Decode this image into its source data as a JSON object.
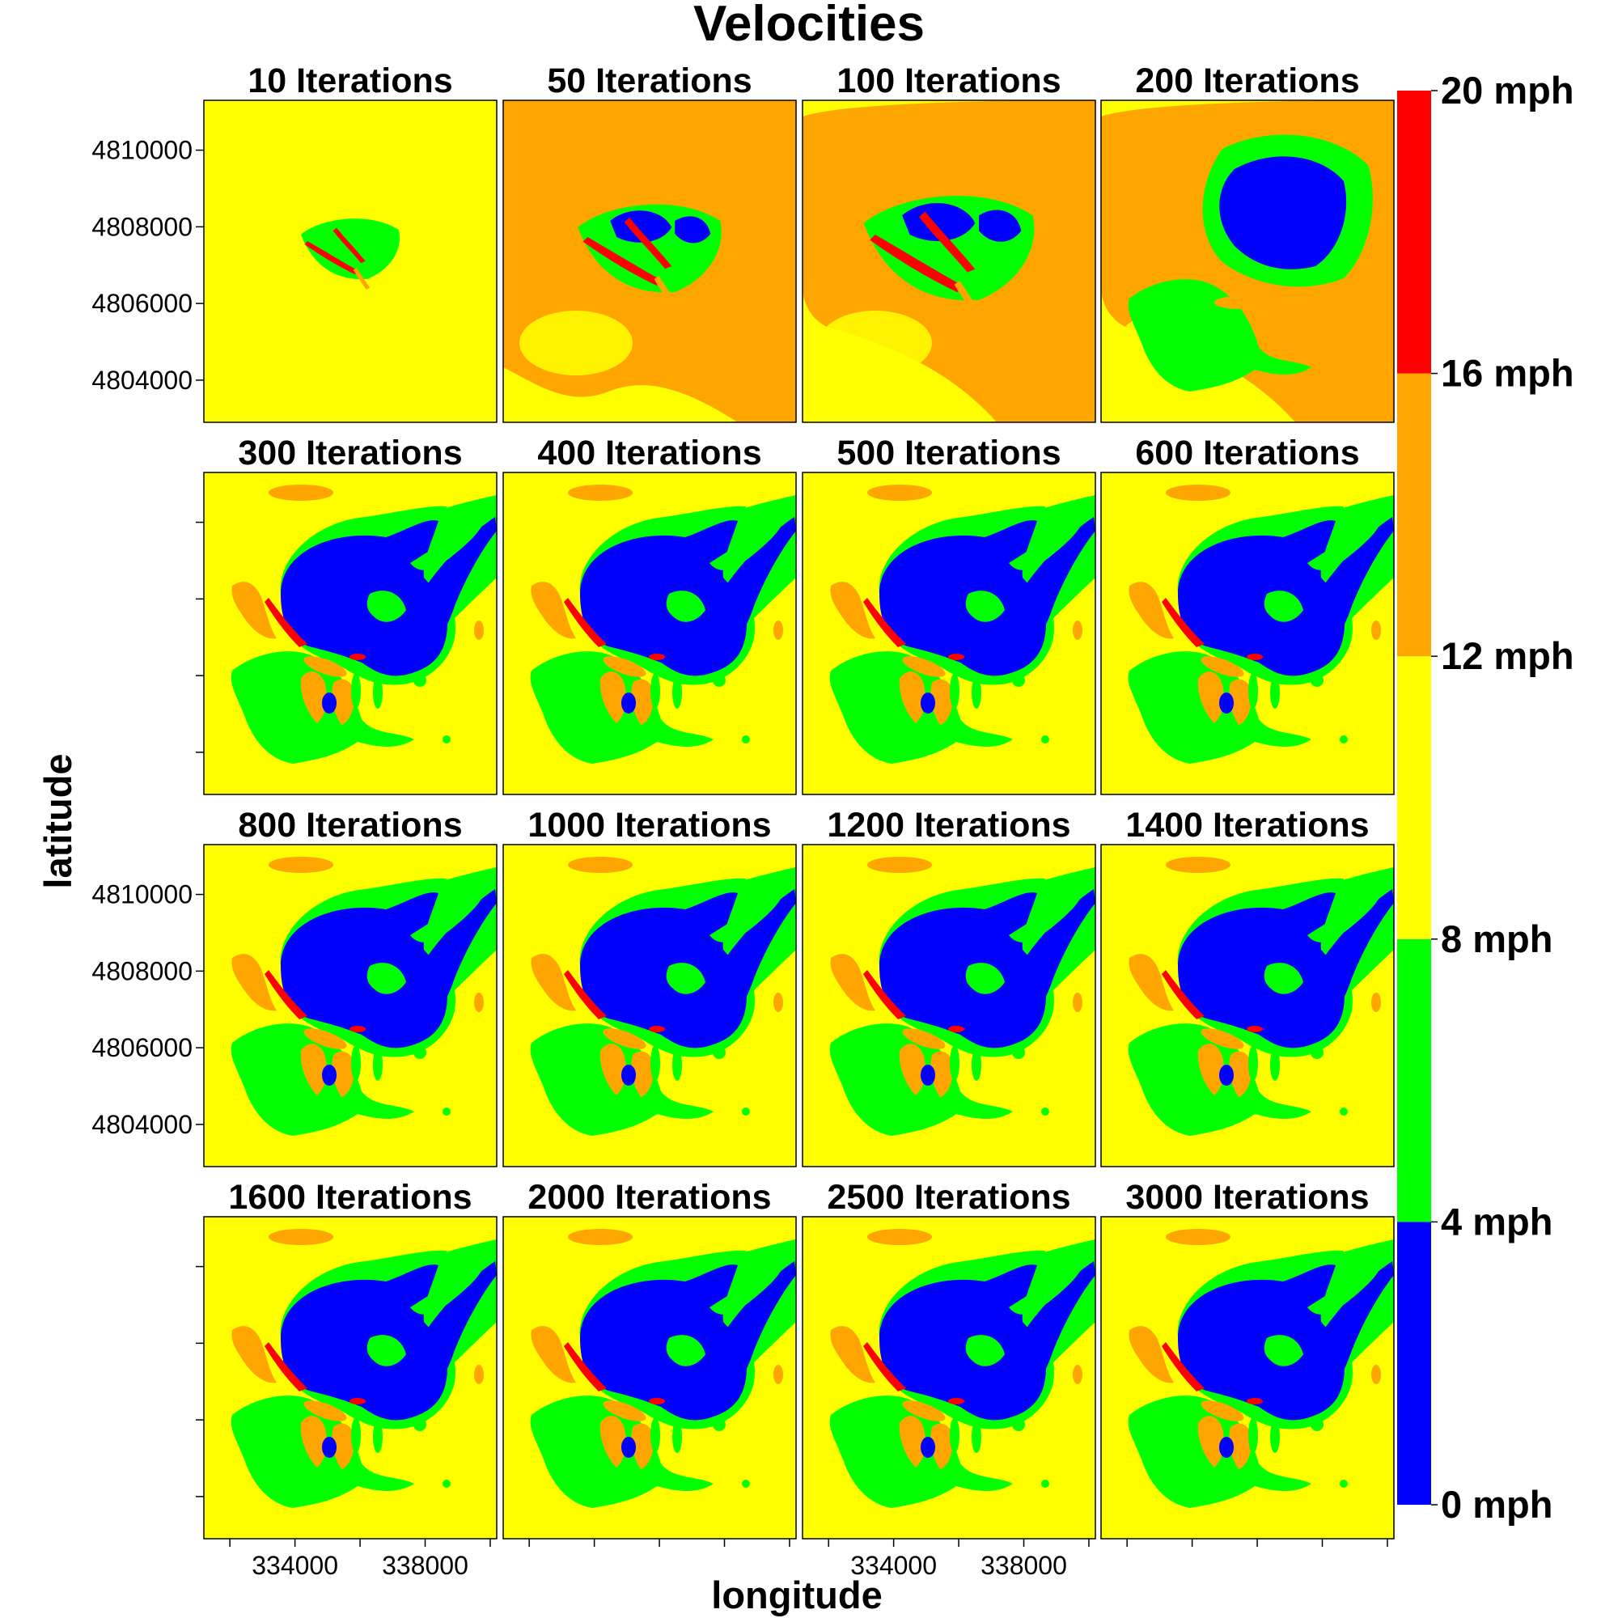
{
  "chart_data": {
    "type": "heatmap",
    "title": "Velocities",
    "xlabel": "longitude",
    "ylabel": "latitude",
    "xlim": [
      331200,
      340200
    ],
    "ylim": [
      4802900,
      4811300
    ],
    "x_ticks": [
      334000,
      338000
    ],
    "x_tick_labels": [
      "334000",
      "338000"
    ],
    "y_ticks": [
      4810000,
      4808000,
      4806000,
      4804000
    ],
    "y_tick_labels": [
      "4810000",
      "4808000",
      "4806000",
      "4804000"
    ],
    "panels": [
      {
        "title": "10 Iterations"
      },
      {
        "title": "50 Iterations"
      },
      {
        "title": "100 Iterations"
      },
      {
        "title": "200 Iterations"
      },
      {
        "title": "300 Iterations"
      },
      {
        "title": "400 Iterations"
      },
      {
        "title": "500 Iterations"
      },
      {
        "title": "600 Iterations"
      },
      {
        "title": "800 Iterations"
      },
      {
        "title": "1000 Iterations"
      },
      {
        "title": "1200 Iterations"
      },
      {
        "title": "1400 Iterations"
      },
      {
        "title": "1600 Iterations"
      },
      {
        "title": "2000 Iterations"
      },
      {
        "title": "2500 Iterations"
      },
      {
        "title": "3000 Iterations"
      }
    ],
    "legend": {
      "placement": "right",
      "breaks": [
        "0 mph",
        "4 mph",
        "8 mph",
        "12 mph",
        "16 mph",
        "20 mph"
      ],
      "bins": [
        {
          "from": 0,
          "to": 4,
          "color": "#0000ff"
        },
        {
          "from": 4,
          "to": 8,
          "color": "#00ff00"
        },
        {
          "from": 8,
          "to": 12,
          "color": "#ffff00"
        },
        {
          "from": 12,
          "to": 16,
          "color": "#ffa500"
        },
        {
          "from": 16,
          "to": 20,
          "color": "#ff0000"
        }
      ]
    }
  }
}
